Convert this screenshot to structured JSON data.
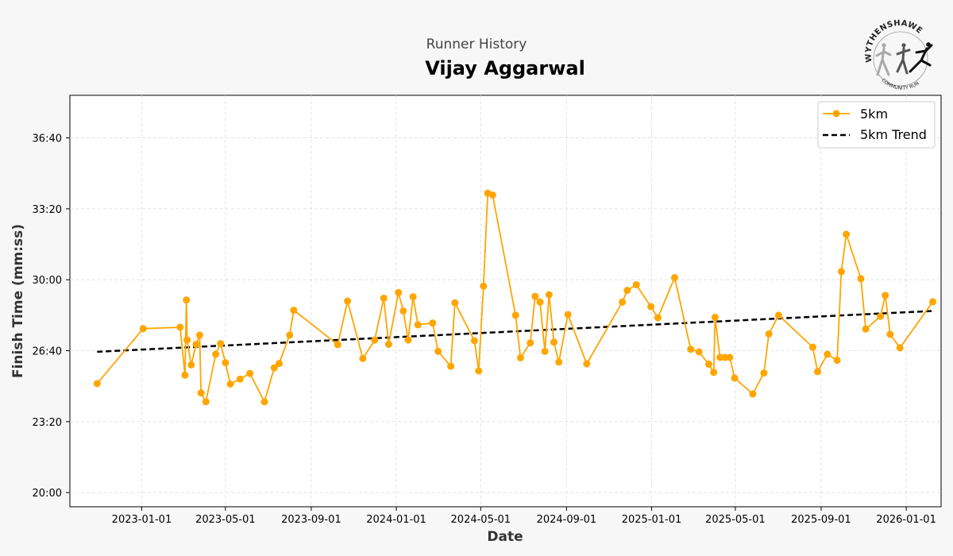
{
  "header": {
    "subtitle": "Runner History",
    "title": "Vijay Aggarwal"
  },
  "logo": {
    "text_top": "WYTHENSHAWE",
    "text_bottom": "COMMUNITY RUN"
  },
  "colors": {
    "series": "#ffa500",
    "trend": "#000000",
    "background": "#f7f7f7",
    "plot_background": "#ffffff",
    "grid": "#dddddd"
  },
  "chart_data": {
    "type": "line",
    "title": "Vijay Aggarwal",
    "subtitle": "Runner History",
    "xlabel": "Date",
    "ylabel": "Finish Time (mm:ss)",
    "xlim": [
      "2022-09-20",
      "2026-02-20"
    ],
    "ylim": [
      "19:20",
      "38:40"
    ],
    "grid": true,
    "legend_position": "top-right",
    "x_ticks": [
      "2023-01-01",
      "2023-05-01",
      "2023-09-01",
      "2024-01-01",
      "2024-05-01",
      "2024-09-01",
      "2025-01-01",
      "2025-05-01",
      "2025-09-01",
      "2026-01-01"
    ],
    "y_ticks": [
      "20:00",
      "23:20",
      "26:40",
      "30:00",
      "33:20",
      "36:40"
    ],
    "series": [
      {
        "name": "5km",
        "style": "line-marker",
        "points": [
          [
            "2022-10-29",
            "25:07"
          ],
          [
            "2023-01-03",
            "27:42"
          ],
          [
            "2023-02-25",
            "27:46"
          ],
          [
            "2023-03-04",
            "25:31"
          ],
          [
            "2023-03-06",
            "29:03"
          ],
          [
            "2023-03-07",
            "27:10"
          ],
          [
            "2023-03-13",
            "26:00"
          ],
          [
            "2023-03-20",
            "26:58"
          ],
          [
            "2023-03-25",
            "27:24"
          ],
          [
            "2023-03-27",
            "24:41"
          ],
          [
            "2023-04-03",
            "24:16"
          ],
          [
            "2023-04-17",
            "26:30"
          ],
          [
            "2023-04-24",
            "27:00"
          ],
          [
            "2023-05-01",
            "26:06"
          ],
          [
            "2023-05-08",
            "25:06"
          ],
          [
            "2023-05-22",
            "25:20"
          ],
          [
            "2023-06-05",
            "25:36"
          ],
          [
            "2023-06-26",
            "24:16"
          ],
          [
            "2023-07-10",
            "25:52"
          ],
          [
            "2023-07-17",
            "26:04"
          ],
          [
            "2023-08-01",
            "27:24"
          ],
          [
            "2023-08-07",
            "28:34"
          ],
          [
            "2023-10-09",
            "26:57"
          ],
          [
            "2023-10-23",
            "29:00"
          ],
          [
            "2023-11-14",
            "26:18"
          ],
          [
            "2023-12-01",
            "27:10"
          ],
          [
            "2023-12-14",
            "29:08"
          ],
          [
            "2023-12-21",
            "26:58"
          ],
          [
            "2024-01-04",
            "29:24"
          ],
          [
            "2024-01-11",
            "28:32"
          ],
          [
            "2024-01-18",
            "27:10"
          ],
          [
            "2024-01-25",
            "29:12"
          ],
          [
            "2024-02-01",
            "27:53"
          ],
          [
            "2024-02-22",
            "27:58"
          ],
          [
            "2024-03-01",
            "26:38"
          ],
          [
            "2024-03-19",
            "25:56"
          ],
          [
            "2024-03-25",
            "28:55"
          ],
          [
            "2024-04-22",
            "27:08"
          ],
          [
            "2024-04-28",
            "25:43"
          ],
          [
            "2024-05-05",
            "29:42"
          ],
          [
            "2024-05-11",
            "34:04"
          ],
          [
            "2024-05-18",
            "33:59"
          ],
          [
            "2024-06-20",
            "28:20"
          ],
          [
            "2024-06-27",
            "26:20"
          ],
          [
            "2024-07-11",
            "27:02"
          ],
          [
            "2024-07-18",
            "29:13"
          ],
          [
            "2024-07-25",
            "28:57"
          ],
          [
            "2024-08-01",
            "26:38"
          ],
          [
            "2024-08-07",
            "29:18"
          ],
          [
            "2024-08-14",
            "27:04"
          ],
          [
            "2024-08-21",
            "26:08"
          ],
          [
            "2024-09-03",
            "28:22"
          ],
          [
            "2024-09-30",
            "26:03"
          ],
          [
            "2024-11-20",
            "28:57"
          ],
          [
            "2024-11-27",
            "29:30"
          ],
          [
            "2024-12-10",
            "29:46"
          ],
          [
            "2024-12-31",
            "28:44"
          ],
          [
            "2025-01-10",
            "28:13"
          ],
          [
            "2025-02-03",
            "30:06"
          ],
          [
            "2025-02-26",
            "26:44"
          ],
          [
            "2025-03-10",
            "26:37"
          ],
          [
            "2025-03-24",
            "26:02"
          ],
          [
            "2025-03-31",
            "25:39"
          ],
          [
            "2025-04-02",
            "28:14"
          ],
          [
            "2025-04-09",
            "26:21"
          ],
          [
            "2025-04-16",
            "26:21"
          ],
          [
            "2025-04-23",
            "26:21"
          ],
          [
            "2025-04-30",
            "25:23"
          ],
          [
            "2025-05-26",
            "24:38"
          ],
          [
            "2025-06-11",
            "25:37"
          ],
          [
            "2025-06-18",
            "27:27"
          ],
          [
            "2025-07-02",
            "28:20"
          ],
          [
            "2025-08-20",
            "26:50"
          ],
          [
            "2025-08-27",
            "25:41"
          ],
          [
            "2025-09-10",
            "26:30"
          ],
          [
            "2025-09-24",
            "26:13"
          ],
          [
            "2025-09-30",
            "30:23"
          ],
          [
            "2025-10-07",
            "32:08"
          ],
          [
            "2025-10-28",
            "30:03"
          ],
          [
            "2025-11-04",
            "27:41"
          ],
          [
            "2025-11-25",
            "28:17"
          ],
          [
            "2025-12-02",
            "29:16"
          ],
          [
            "2025-12-09",
            "27:26"
          ],
          [
            "2025-12-23",
            "26:48"
          ],
          [
            "2026-02-08",
            "28:58"
          ]
        ]
      },
      {
        "name": "5km Trend",
        "style": "dashed",
        "points": [
          [
            "2022-10-29",
            "26:37"
          ],
          [
            "2026-02-08",
            "28:32"
          ]
        ]
      }
    ]
  }
}
